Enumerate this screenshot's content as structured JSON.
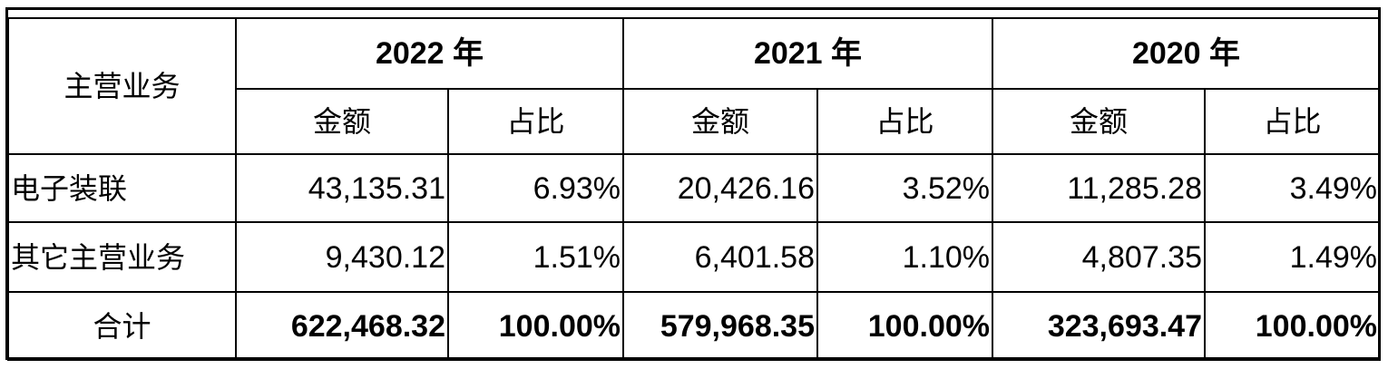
{
  "table": {
    "row_header_label": "主营业务",
    "years": [
      "2022 年",
      "2021 年",
      "2020 年"
    ],
    "sub_headers": {
      "amount": "金额",
      "ratio": "占比"
    },
    "rows": [
      {
        "label": "电子装联",
        "values": [
          "43,135.31",
          "6.93%",
          "20,426.16",
          "3.52%",
          "11,285.28",
          "3.49%"
        ]
      },
      {
        "label": "其它主营业务",
        "values": [
          "9,430.12",
          "1.51%",
          "6,401.58",
          "1.10%",
          "4,807.35",
          "1.49%"
        ]
      }
    ],
    "total": {
      "label": "合计",
      "values": [
        "622,468.32",
        "100.00%",
        "579,968.35",
        "100.00%",
        "323,693.47",
        "100.00%"
      ]
    }
  }
}
